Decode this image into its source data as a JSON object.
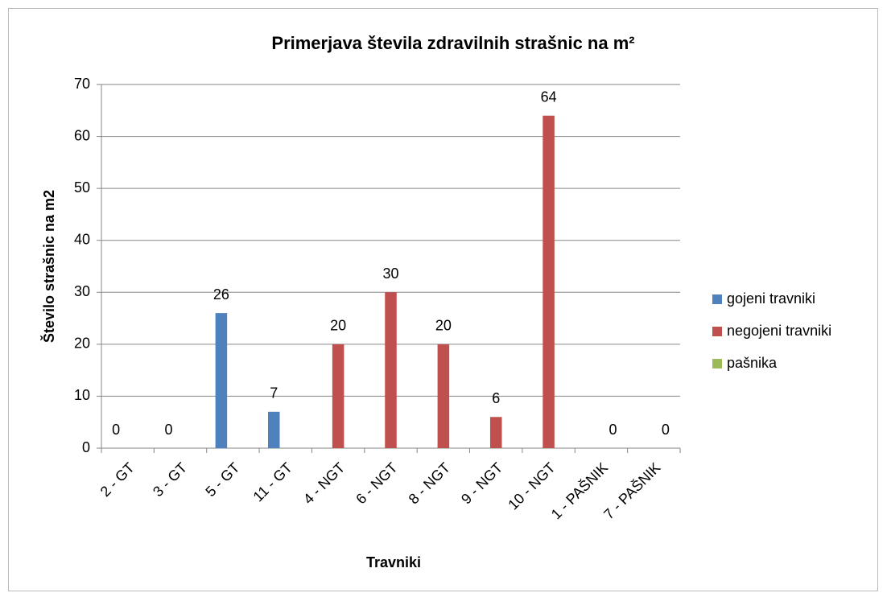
{
  "chart_data": {
    "type": "bar",
    "title": "Primerjava števila zdravilnih strašnic na m²",
    "x_label": "Travniki",
    "y_label": "Število strašnic na m2",
    "categories": [
      "2 - GT",
      "3 - GT",
      "5 - GT",
      "11 - GT",
      "4 - NGT",
      "6 - NGT",
      "8 - NGT",
      "9 - NGT",
      "10 - NGT",
      "1 - PAŠNIK",
      "7 - PAŠNIK"
    ],
    "series": [
      {
        "name": "gojeni travniki",
        "color": "#4f81bd",
        "values": [
          0,
          0,
          26,
          7,
          null,
          null,
          null,
          null,
          null,
          null,
          null
        ]
      },
      {
        "name": "negojeni travniki",
        "color": "#c0504d",
        "values": [
          null,
          null,
          null,
          null,
          20,
          30,
          20,
          6,
          64,
          null,
          null
        ]
      },
      {
        "name": "pašnika",
        "color": "#9bbb59",
        "values": [
          null,
          null,
          null,
          null,
          null,
          null,
          null,
          null,
          null,
          0,
          0
        ]
      }
    ],
    "ylim": [
      0,
      70
    ],
    "yticks": [
      0,
      10,
      20,
      30,
      40,
      50,
      60,
      70
    ],
    "grid": true,
    "legend": "right"
  }
}
